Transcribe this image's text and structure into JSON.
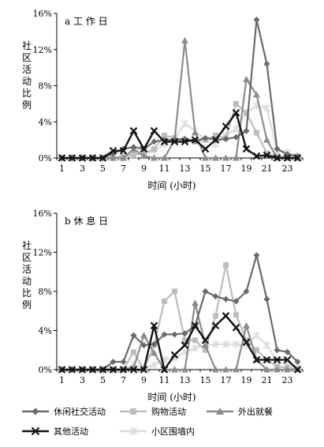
{
  "colors": {
    "休闲社交活动": "#6a6a6a",
    "购物活动": "#bdbdbd",
    "外出就餐": "#8c8c8c",
    "其他活动": "#141414",
    "小区围墙内": "#dcdcdc"
  },
  "legend": [
    "休闲社交活动",
    "购物活动",
    "外出就餐",
    "其他活动",
    "小区围墙内"
  ],
  "chart_data": [
    {
      "type": "line",
      "panel": "a",
      "title": "a  工 作 日",
      "xlabel": "时间 (小时)",
      "ylabel": "社区活动比例",
      "x": [
        1,
        2,
        3,
        4,
        5,
        6,
        7,
        8,
        9,
        10,
        11,
        12,
        13,
        14,
        15,
        16,
        17,
        18,
        19,
        20,
        21,
        22,
        23,
        24
      ],
      "xticks": [
        "1",
        "3",
        "5",
        "7",
        "9",
        "11",
        "13",
        "15",
        "17",
        "19",
        "21",
        "23"
      ],
      "yticks": [
        "0%",
        "4%",
        "8%",
        "12%",
        "16%"
      ],
      "ylim": [
        0,
        16
      ],
      "grid": false,
      "legend_placement": "bottom",
      "series": [
        {
          "name": "休闲社交活动",
          "marker": "diamond",
          "values": [
            0,
            0,
            0,
            0,
            0,
            0.5,
            1.0,
            1.2,
            1.0,
            1.8,
            2.0,
            2.0,
            2.1,
            1.9,
            2.2,
            2.0,
            2.1,
            2.3,
            3.0,
            15.3,
            10.4,
            1.0,
            0.4,
            0.2
          ]
        },
        {
          "name": "购物活动",
          "marker": "square",
          "values": [
            0,
            0,
            0,
            0,
            0,
            0,
            0.2,
            0.4,
            0.5,
            1.0,
            2.5,
            2.2,
            2.0,
            1.8,
            2.0,
            2.5,
            2.2,
            6.0,
            5.0,
            2.8,
            0.5,
            0.2,
            0.1,
            0
          ]
        },
        {
          "name": "外出就餐",
          "marker": "triangle",
          "values": [
            0,
            0,
            0,
            0,
            0,
            0,
            0,
            1.0,
            0.2,
            0,
            0,
            2.0,
            13.0,
            2.8,
            0,
            0,
            0,
            0,
            8.7,
            7.0,
            2.0,
            0,
            0,
            0
          ]
        },
        {
          "name": "其他活动",
          "marker": "x",
          "values": [
            0,
            0,
            0,
            0,
            0,
            0.8,
            0.8,
            3.0,
            1.0,
            3.0,
            1.8,
            1.8,
            1.8,
            2.0,
            1.0,
            2.0,
            3.5,
            5.0,
            1.0,
            0.2,
            0.3,
            0,
            0,
            0
          ]
        },
        {
          "name": "小区围墙内",
          "marker": "star",
          "values": [
            0,
            0,
            0,
            0,
            0,
            0,
            0,
            0.3,
            0.5,
            0.8,
            1.5,
            2.2,
            3.8,
            3.0,
            2.0,
            1.5,
            2.5,
            3.2,
            5.0,
            5.8,
            5.5,
            0.8,
            0.6,
            0.2
          ]
        }
      ]
    },
    {
      "type": "line",
      "panel": "b",
      "title": "b  休 息 日",
      "xlabel": "时间 (小时)",
      "ylabel": "社区活动比例",
      "x": [
        1,
        2,
        3,
        4,
        5,
        6,
        7,
        8,
        9,
        10,
        11,
        12,
        13,
        14,
        15,
        16,
        17,
        18,
        19,
        20,
        21,
        22,
        23,
        24
      ],
      "xticks": [
        "1",
        "3",
        "5",
        "7",
        "9",
        "11",
        "13",
        "15",
        "17",
        "19",
        "21",
        "23"
      ],
      "yticks": [
        "0%",
        "4%",
        "8%",
        "12%",
        "16%"
      ],
      "ylim": [
        0,
        16
      ],
      "grid": false,
      "legend_placement": "bottom",
      "series": [
        {
          "name": "休闲社交活动",
          "marker": "diamond",
          "values": [
            0,
            0,
            0,
            0,
            0,
            0.8,
            0.8,
            3.5,
            2.5,
            2.6,
            3.6,
            3.6,
            3.7,
            4.5,
            8.0,
            7.5,
            7.2,
            7.0,
            8.0,
            11.7,
            7.2,
            2.0,
            1.8,
            0.8
          ]
        },
        {
          "name": "购物活动",
          "marker": "square",
          "values": [
            0,
            0,
            0,
            0,
            0,
            0,
            0,
            1.8,
            0,
            2.5,
            7.0,
            8.0,
            3.0,
            3.0,
            2.0,
            5.5,
            10.7,
            5.6,
            3.0,
            2.0,
            1.0,
            0.3,
            0.2,
            0
          ]
        },
        {
          "name": "外出就餐",
          "marker": "triangle",
          "values": [
            0,
            0,
            0,
            0,
            0,
            0,
            0,
            0.2,
            3.5,
            1.7,
            0,
            0,
            0,
            6.8,
            2.5,
            0,
            0,
            0,
            4.5,
            1.0,
            0,
            0,
            0,
            0
          ]
        },
        {
          "name": "其他活动",
          "marker": "x",
          "values": [
            0,
            0,
            0,
            0,
            0,
            0,
            0,
            0,
            0,
            4.5,
            0,
            1.5,
            2.5,
            4.5,
            3.0,
            4.5,
            5.5,
            4.3,
            2.8,
            1.0,
            1.0,
            1.0,
            1.0,
            0
          ]
        },
        {
          "name": "小区围墙内",
          "marker": "star",
          "values": [
            0,
            0,
            0,
            0,
            0,
            0,
            0,
            0.5,
            0.2,
            0.5,
            1.0,
            1.2,
            1.8,
            2.2,
            2.5,
            2.6,
            2.6,
            2.6,
            2.5,
            3.5,
            2.5,
            0.8,
            0.5,
            0.2
          ]
        }
      ]
    }
  ]
}
